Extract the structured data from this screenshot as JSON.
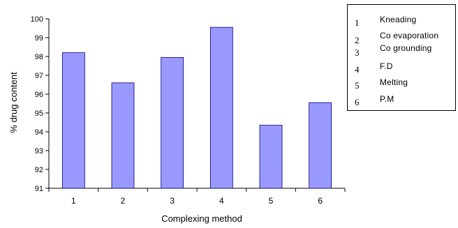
{
  "chart_data": {
    "type": "bar",
    "categories": [
      "1",
      "2",
      "3",
      "4",
      "5",
      "6"
    ],
    "values": [
      98.2,
      96.6,
      97.95,
      99.55,
      94.35,
      95.55
    ],
    "xlabel": "Complexing method",
    "ylabel": "% drug content",
    "ylim": [
      91,
      100
    ],
    "yticks": [
      "91",
      "92",
      "93",
      "94",
      "95",
      "96",
      "97",
      "98",
      "99",
      "100"
    ],
    "grid": false,
    "bar_color": "#9999ff",
    "bar_edge_color": "#000080",
    "legend": {
      "placement": "top-right",
      "entries": [
        {
          "num": "1",
          "label": "Kneading"
        },
        {
          "num": "2",
          "label": "Co evaporation"
        },
        {
          "num": "3",
          "label": "Co grounding"
        },
        {
          "num": "4",
          "label": "F.D"
        },
        {
          "num": "5",
          "label": "Melting"
        },
        {
          "num": "6",
          "label": "P.M"
        }
      ]
    }
  }
}
